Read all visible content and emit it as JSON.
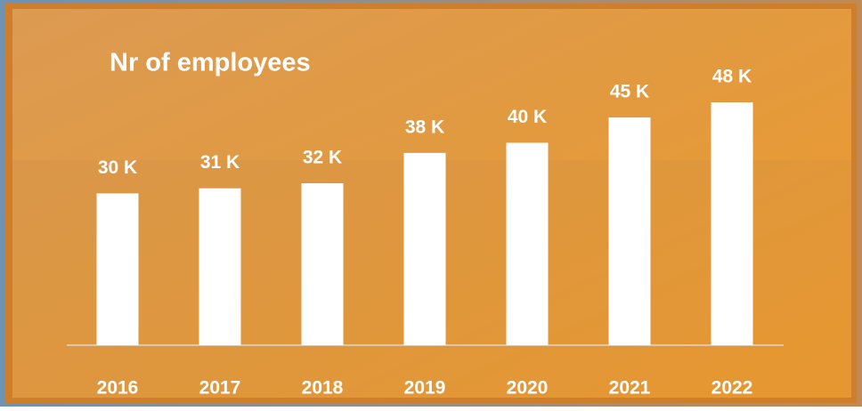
{
  "chart_data": {
    "type": "bar",
    "title": "Nr of employees",
    "categories": [
      "2016",
      "2017",
      "2018",
      "2019",
      "2020",
      "2021",
      "2022"
    ],
    "values": [
      30,
      31,
      32,
      38,
      40,
      45,
      48
    ],
    "value_labels": [
      "30 K",
      "31 K",
      "32 K",
      "38 K",
      "40 K",
      "45 K",
      "48 K"
    ],
    "color": "#ffffff"
  }
}
